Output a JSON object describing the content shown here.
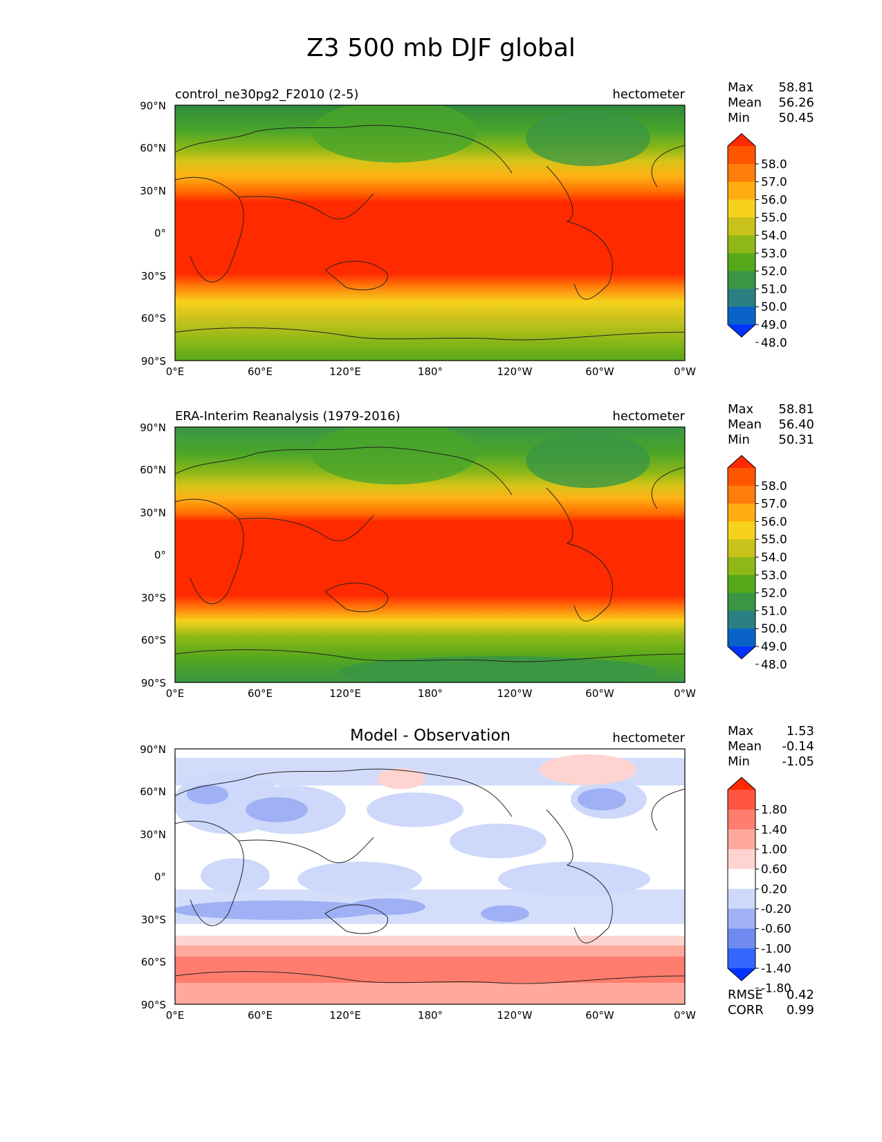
{
  "figure": {
    "title": "Z3 500 mb DJF global"
  },
  "axes": {
    "lat_ticks": [
      "90°N",
      "60°N",
      "30°N",
      "0°",
      "30°S",
      "60°S",
      "90°S"
    ],
    "lon_ticks": [
      "0°E",
      "60°E",
      "120°E",
      "180°",
      "120°W",
      "60°W",
      "0°W"
    ]
  },
  "colors": {
    "model_scale": [
      "#0033ff",
      "#0a63c8",
      "#2a7f82",
      "#3a9645",
      "#56a81a",
      "#8fb817",
      "#c8c21b",
      "#f7d21c",
      "#ffad10",
      "#ff7d0a",
      "#ff5500",
      "#ff2a00"
    ],
    "diff_scale": [
      "#0033ff",
      "#3366ff",
      "#6f8bf2",
      "#9fb0f5",
      "#cdd8fa",
      "#ffffff",
      "#ffd4d0",
      "#ffa99c",
      "#ff7d6e",
      "#ff5540",
      "#ff2a00"
    ]
  },
  "chart_data": [
    {
      "type": "heatmap",
      "panel": "control",
      "title": "control_ne30pg2_F2010 (2-5)",
      "units": "hectometer",
      "stats": {
        "max_label": "Max",
        "max": "58.81",
        "mean_label": "Mean",
        "mean": "56.26",
        "min_label": "Min",
        "min": "50.45"
      },
      "colorbar": {
        "levels": [
          "58.0",
          "57.0",
          "56.0",
          "55.0",
          "54.0",
          "53.0",
          "52.0",
          "51.0",
          "50.0",
          "49.0",
          "48.0"
        ]
      },
      "zonal_mean_profile": {
        "lat": [
          90,
          75,
          60,
          45,
          35,
          25,
          20,
          0,
          -20,
          -30,
          -40,
          -50,
          -60,
          -70,
          -80,
          -90
        ],
        "z3": [
          51.3,
          51.6,
          52.5,
          54.6,
          56.8,
          58.2,
          58.6,
          58.7,
          58.5,
          57.6,
          55.8,
          53.8,
          52.7,
          52.1,
          51.6,
          51.4
        ]
      }
    },
    {
      "type": "heatmap",
      "panel": "observation",
      "title": "ERA-Interim Reanalysis (1979-2016)",
      "units": "hectometer",
      "stats": {
        "max_label": "Max",
        "max": "58.81",
        "mean_label": "Mean",
        "mean": "56.40",
        "min_label": "Min",
        "min": "50.31"
      },
      "colorbar": {
        "levels": [
          "58.0",
          "57.0",
          "56.0",
          "55.0",
          "54.0",
          "53.0",
          "52.0",
          "51.0",
          "50.0",
          "49.0",
          "48.0"
        ]
      },
      "zonal_mean_profile": {
        "lat": [
          90,
          75,
          60,
          45,
          35,
          25,
          20,
          0,
          -20,
          -30,
          -40,
          -50,
          -60,
          -70,
          -80,
          -90
        ],
        "z3": [
          51.0,
          51.4,
          52.3,
          54.6,
          56.8,
          58.3,
          58.7,
          58.8,
          58.6,
          57.6,
          55.6,
          53.4,
          52.0,
          51.6,
          51.0,
          50.8
        ]
      }
    },
    {
      "type": "heatmap",
      "panel": "difference",
      "title": "Model - Observation",
      "units": "hectometer",
      "stats": {
        "max_label": "Max",
        "max": "1.53",
        "mean_label": "Mean",
        "mean": "-0.14",
        "min_label": "Min",
        "min": "-1.05"
      },
      "colorbar": {
        "levels": [
          "1.80",
          "1.40",
          "1.00",
          "0.60",
          "0.20",
          "-0.20",
          "-0.60",
          "-1.00",
          "-1.40",
          "-1.80"
        ]
      },
      "metrics": {
        "rmse_label": "RMSE",
        "rmse": "0.42",
        "corr_label": "CORR",
        "corr": "0.99"
      }
    }
  ]
}
